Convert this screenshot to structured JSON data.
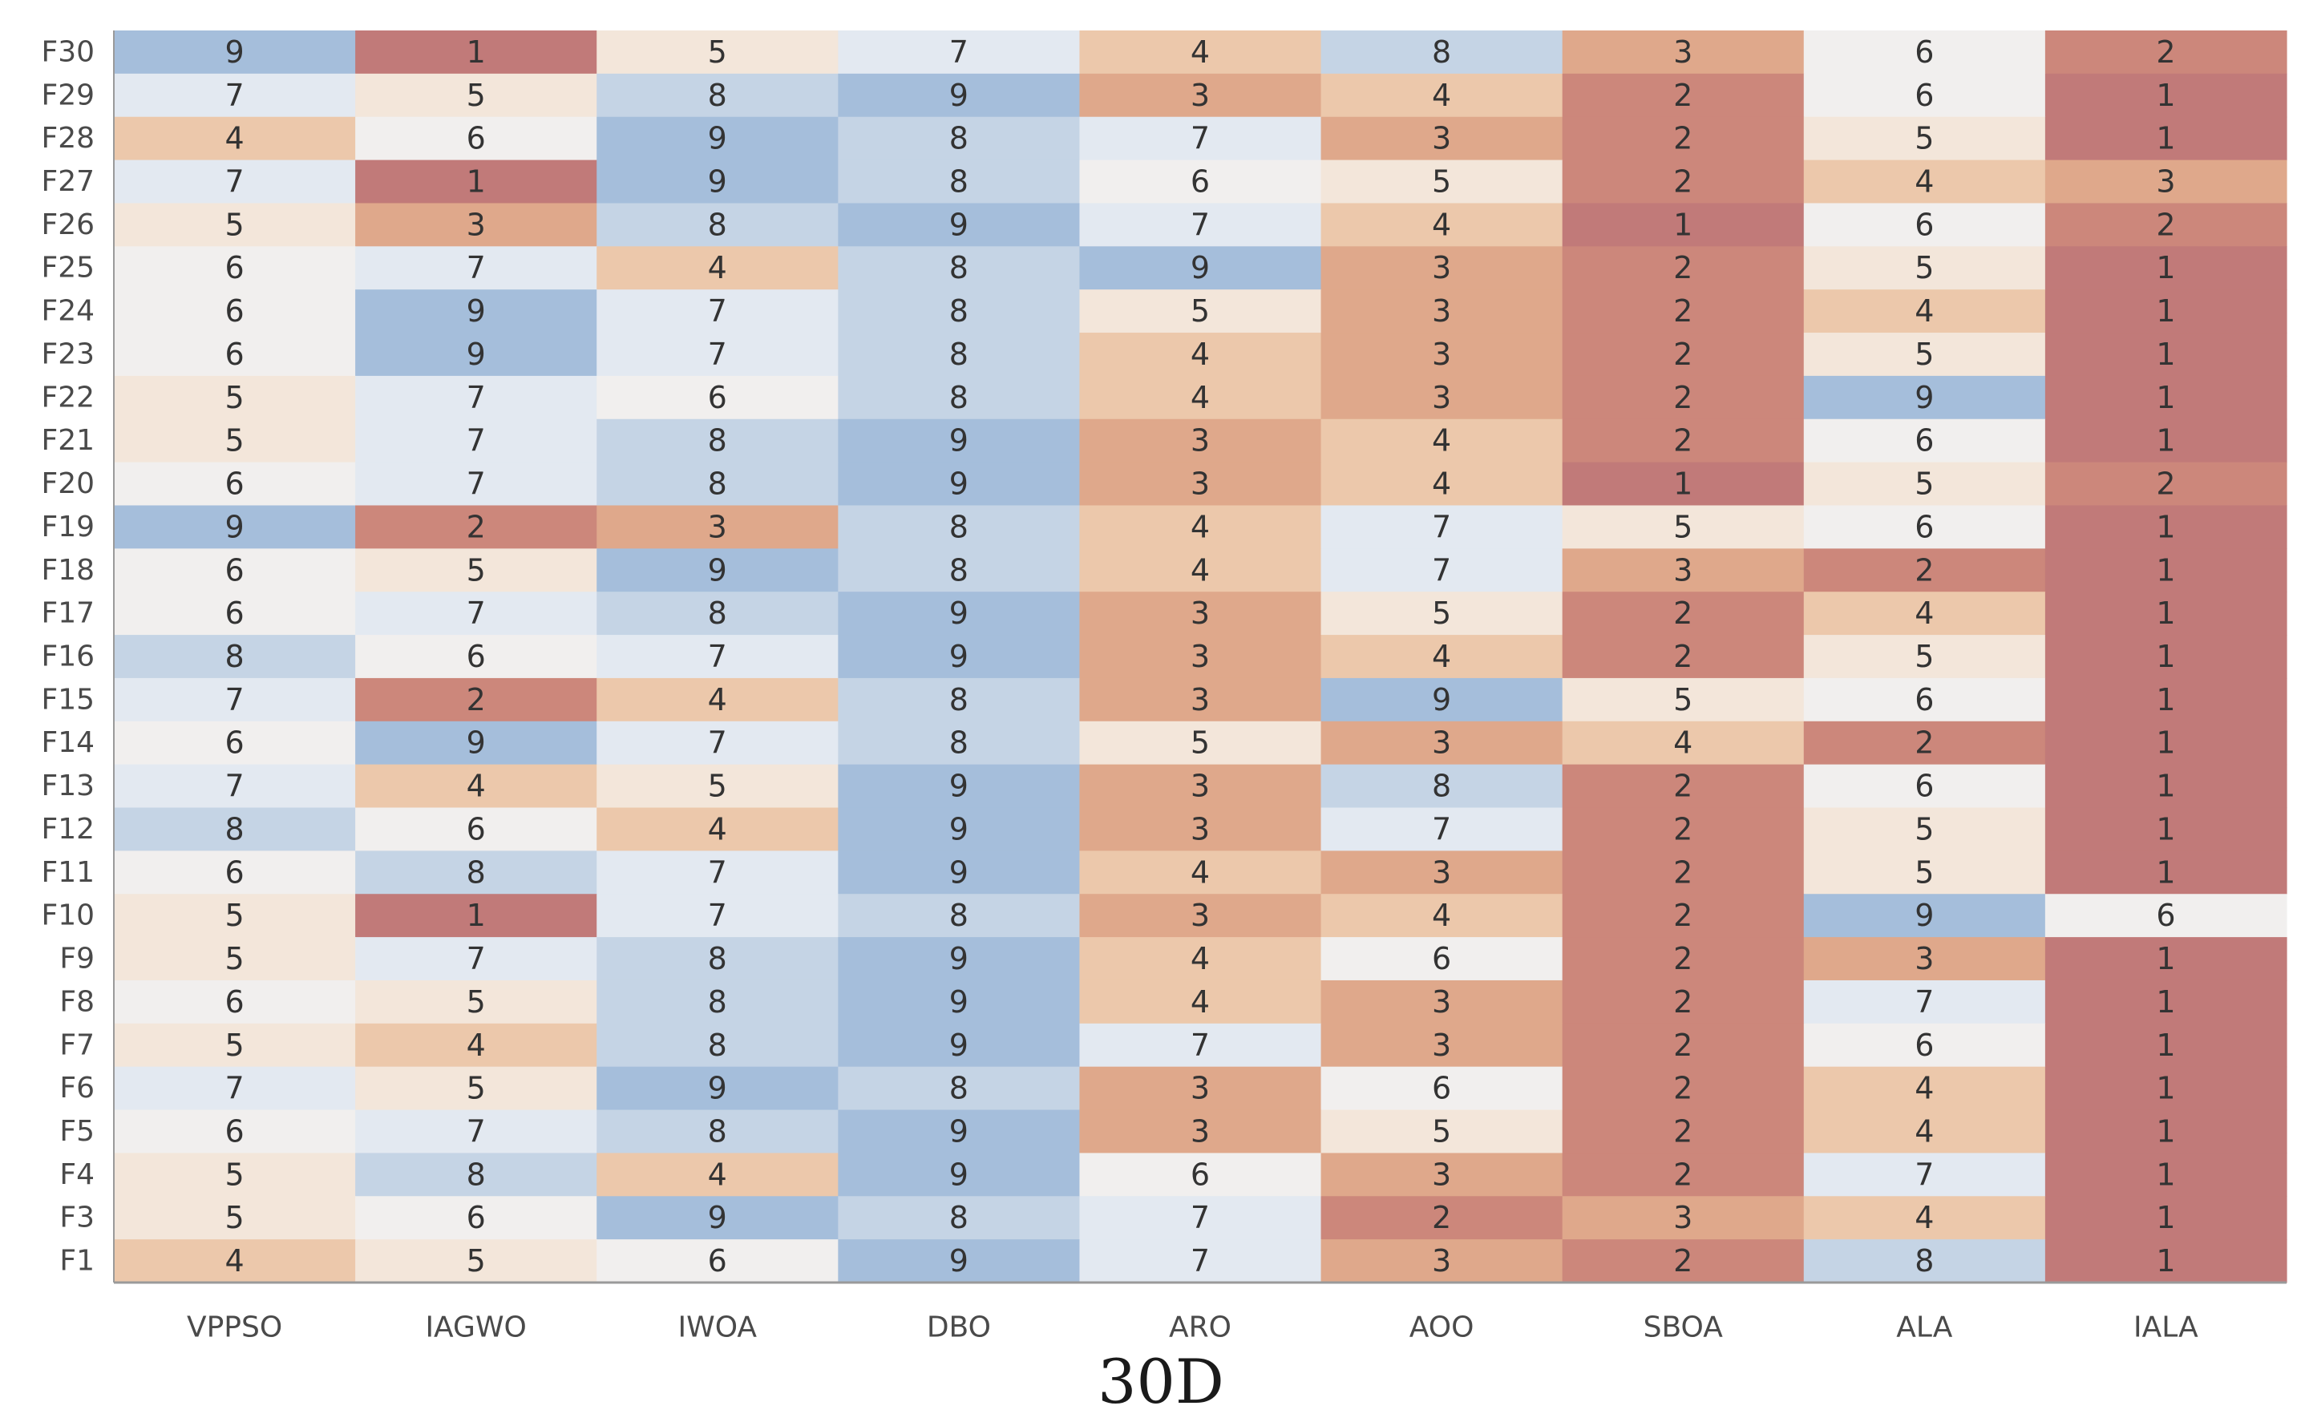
{
  "chart_data": {
    "type": "heatmap",
    "title": "",
    "caption": "30D",
    "xlabel": "",
    "ylabel": "",
    "columns": [
      "VPPSO",
      "IAGWO",
      "IWOA",
      "DBO",
      "ARO",
      "AOO",
      "SBOA",
      "ALA",
      "IALA"
    ],
    "rows": [
      "F30",
      "F29",
      "F28",
      "F27",
      "F26",
      "F25",
      "F24",
      "F23",
      "F22",
      "F21",
      "F20",
      "F19",
      "F18",
      "F17",
      "F16",
      "F15",
      "F14",
      "F13",
      "F12",
      "F11",
      "F10",
      "F9",
      "F8",
      "F7",
      "F6",
      "F5",
      "F4",
      "F3",
      "F1"
    ],
    "values": [
      [
        9,
        1,
        5,
        7,
        4,
        8,
        3,
        6,
        2
      ],
      [
        7,
        5,
        8,
        9,
        3,
        4,
        2,
        6,
        1
      ],
      [
        4,
        6,
        9,
        8,
        7,
        3,
        2,
        5,
        1
      ],
      [
        7,
        1,
        9,
        8,
        6,
        5,
        2,
        4,
        3
      ],
      [
        5,
        3,
        8,
        9,
        7,
        4,
        1,
        6,
        2
      ],
      [
        6,
        7,
        4,
        8,
        9,
        3,
        2,
        5,
        1
      ],
      [
        6,
        9,
        7,
        8,
        5,
        3,
        2,
        4,
        1
      ],
      [
        6,
        9,
        7,
        8,
        4,
        3,
        2,
        5,
        1
      ],
      [
        5,
        7,
        6,
        8,
        4,
        3,
        2,
        9,
        1
      ],
      [
        5,
        7,
        8,
        9,
        3,
        4,
        2,
        6,
        1
      ],
      [
        6,
        7,
        8,
        9,
        3,
        4,
        1,
        5,
        2
      ],
      [
        9,
        2,
        3,
        8,
        4,
        7,
        5,
        6,
        1
      ],
      [
        6,
        5,
        9,
        8,
        4,
        7,
        3,
        2,
        1
      ],
      [
        6,
        7,
        8,
        9,
        3,
        5,
        2,
        4,
        1
      ],
      [
        8,
        6,
        7,
        9,
        3,
        4,
        2,
        5,
        1
      ],
      [
        7,
        2,
        4,
        8,
        3,
        9,
        5,
        6,
        1
      ],
      [
        6,
        9,
        7,
        8,
        5,
        3,
        4,
        2,
        1
      ],
      [
        7,
        4,
        5,
        9,
        3,
        8,
        2,
        6,
        1
      ],
      [
        8,
        6,
        4,
        9,
        3,
        7,
        2,
        5,
        1
      ],
      [
        6,
        8,
        7,
        9,
        4,
        3,
        2,
        5,
        1
      ],
      [
        5,
        1,
        7,
        8,
        3,
        4,
        2,
        9,
        6
      ],
      [
        5,
        7,
        8,
        9,
        4,
        6,
        2,
        3,
        1
      ],
      [
        6,
        5,
        8,
        9,
        4,
        3,
        2,
        7,
        1
      ],
      [
        5,
        4,
        8,
        9,
        7,
        3,
        2,
        6,
        1
      ],
      [
        7,
        5,
        9,
        8,
        3,
        6,
        2,
        4,
        1
      ],
      [
        6,
        7,
        8,
        9,
        3,
        5,
        2,
        4,
        1
      ],
      [
        5,
        8,
        4,
        9,
        6,
        3,
        2,
        7,
        1
      ],
      [
        5,
        6,
        9,
        8,
        7,
        2,
        3,
        4,
        1
      ],
      [
        4,
        5,
        6,
        9,
        7,
        3,
        2,
        8,
        1
      ]
    ],
    "value_range": [
      1,
      9
    ],
    "colormap": {
      "1": "#c17a79",
      "2": "#cc877b",
      "3": "#dfa88b",
      "4": "#ecc8ab",
      "5": "#f3e6da",
      "6": "#f1efee",
      "7": "#e3e9f1",
      "8": "#c5d4e5",
      "9": "#a5bedb"
    },
    "grid": false,
    "legend": "none"
  }
}
